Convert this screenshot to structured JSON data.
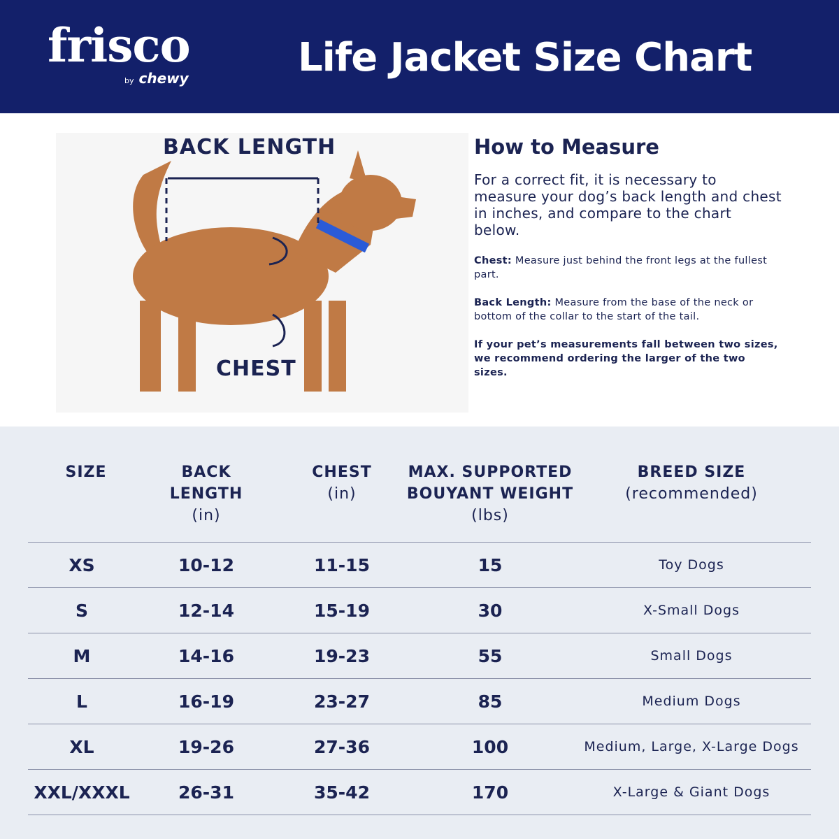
{
  "header": {
    "logo": "frisco",
    "logo_sub_by": "by",
    "logo_sub": "chewy",
    "title": "Life Jacket Size Chart"
  },
  "photo": {
    "back_label": "BACK LENGTH",
    "chest_label": "CHEST"
  },
  "howto": {
    "heading": "How to Measure",
    "intro": "For a correct fit, it is necessary to measure your dog’s back length and chest in inches, and compare to the chart below.",
    "chest_term": "Chest:",
    "chest_text": " Measure just behind the front legs at the fullest part.",
    "back_term": "Back Length:",
    "back_text": " Measure from the base of the neck or bottom of the collar to the start of the tail.",
    "recommendation": "If your pet’s measurements fall between two sizes, we recommend ordering the larger of the two sizes."
  },
  "table": {
    "headers": [
      {
        "bold": "SIZE",
        "sub": ""
      },
      {
        "bold": "BACK LENGTH",
        "sub": "(in)"
      },
      {
        "bold": "CHEST",
        "sub": "(in)"
      },
      {
        "bold": "MAX. SUPPORTED BOUYANT WEIGHT",
        "sub": "(lbs)"
      },
      {
        "bold": "BREED SIZE",
        "sub": "(recommended)"
      }
    ],
    "rows": [
      [
        "XS",
        "10-12",
        "11-15",
        "15",
        "Toy Dogs"
      ],
      [
        "S",
        "12-14",
        "15-19",
        "30",
        "X-Small Dogs"
      ],
      [
        "M",
        "14-16",
        "19-23",
        "55",
        "Small Dogs"
      ],
      [
        "L",
        "16-19",
        "23-27",
        "85",
        "Medium Dogs"
      ],
      [
        "XL",
        "19-26",
        "27-36",
        "100",
        "Medium, Large, X-Large Dogs"
      ],
      [
        "XXL/XXXL",
        "26-31",
        "35-42",
        "170",
        "X-Large & Giant Dogs"
      ]
    ]
  },
  "colors": {
    "navy": "#13206a",
    "text": "#1b2352",
    "table_bg": "#e9edf3"
  }
}
